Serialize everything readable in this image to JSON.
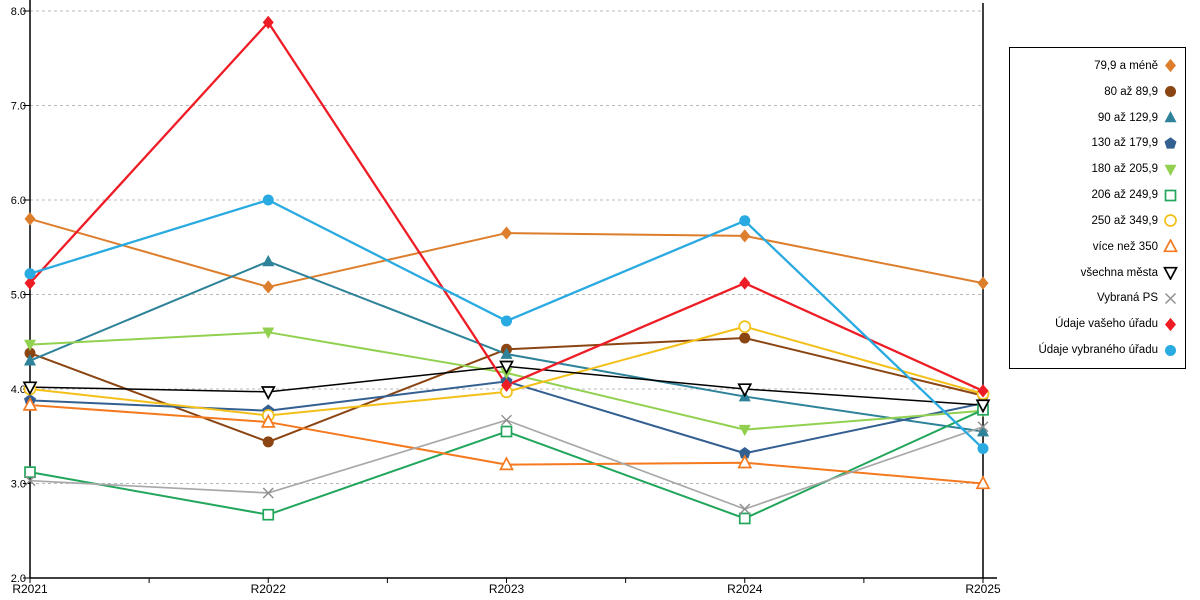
{
  "chart_data": {
    "type": "line",
    "title": "",
    "xlabel": "",
    "ylabel": "",
    "x": [
      "R2021",
      "R2022",
      "R2023",
      "R2024",
      "R2025"
    ],
    "ylim": [
      2.0,
      8.0
    ],
    "y_tick_labels": [
      "8.0",
      "7.0",
      "6.0",
      "5.0",
      "4.0",
      "3.0",
      "2.0"
    ],
    "y_tick_values": [
      8.0,
      7.0,
      6.0,
      5.0,
      4.0,
      3.0,
      2.0
    ],
    "grid": "horizontal-dashed",
    "grid_color": "#b8b8b8",
    "axis_color": "#000000",
    "legend_position": "right-box",
    "series": [
      {
        "name": "79,9 a méně",
        "color": "#dd7e2c",
        "marker": "diamond",
        "fill": true,
        "width": 2,
        "values": [
          5.8,
          5.08,
          5.65,
          5.62,
          5.12
        ]
      },
      {
        "name": "80 až 89,9",
        "color": "#8b4513",
        "marker": "circle",
        "fill": true,
        "width": 2,
        "values": [
          4.38,
          3.44,
          4.42,
          4.54,
          3.93
        ]
      },
      {
        "name": "90 až 129,9",
        "color": "#2e8299",
        "marker": "triangle-up",
        "fill": true,
        "width": 2,
        "values": [
          4.3,
          5.35,
          4.37,
          3.92,
          3.55
        ]
      },
      {
        "name": "130 až 179,9",
        "color": "#335f91",
        "marker": "pentagon",
        "fill": true,
        "width": 2,
        "values": [
          3.88,
          3.77,
          4.08,
          3.32,
          3.85
        ]
      },
      {
        "name": "180 až 205,9",
        "color": "#92d050",
        "marker": "triangle-down",
        "fill": true,
        "width": 2,
        "values": [
          4.47,
          4.6,
          4.17,
          3.57,
          3.77
        ]
      },
      {
        "name": "206 až 249,9",
        "color": "#21a65c",
        "marker": "square",
        "fill": false,
        "width": 2,
        "values": [
          3.12,
          2.67,
          3.55,
          2.63,
          3.78
        ]
      },
      {
        "name": "250 až 349,9",
        "color": "#f3c01a",
        "marker": "circle",
        "fill": false,
        "width": 2,
        "values": [
          4.0,
          3.72,
          3.97,
          4.66,
          3.95
        ]
      },
      {
        "name": "více než 350",
        "color": "#f4791f",
        "marker": "triangle-up",
        "fill": false,
        "width": 2,
        "values": [
          3.83,
          3.65,
          3.2,
          3.22,
          3.0
        ]
      },
      {
        "name": "všechna města",
        "color": "#000000",
        "marker": "triangle-down",
        "fill": false,
        "width": 1.5,
        "values": [
          4.02,
          3.97,
          4.24,
          4.0,
          3.83
        ]
      },
      {
        "name": "Vybraná PS",
        "color": "#a8a8a8",
        "marker": "x",
        "fill": false,
        "width": 1.7,
        "marker_color": "#8c8c8c",
        "values": [
          3.03,
          2.9,
          3.67,
          2.73,
          3.6
        ]
      },
      {
        "name": "Údaje vašeho úřadu",
        "color": "#ee1c25",
        "marker": "diamond",
        "fill": true,
        "width": 2.3,
        "values": [
          5.12,
          7.88,
          4.04,
          5.12,
          3.98
        ]
      },
      {
        "name": "Údaje vybraného úřadu",
        "color": "#29aae1",
        "marker": "circle",
        "fill": true,
        "width": 2.3,
        "values": [
          5.22,
          6.0,
          4.72,
          5.78,
          3.37
        ]
      }
    ]
  }
}
